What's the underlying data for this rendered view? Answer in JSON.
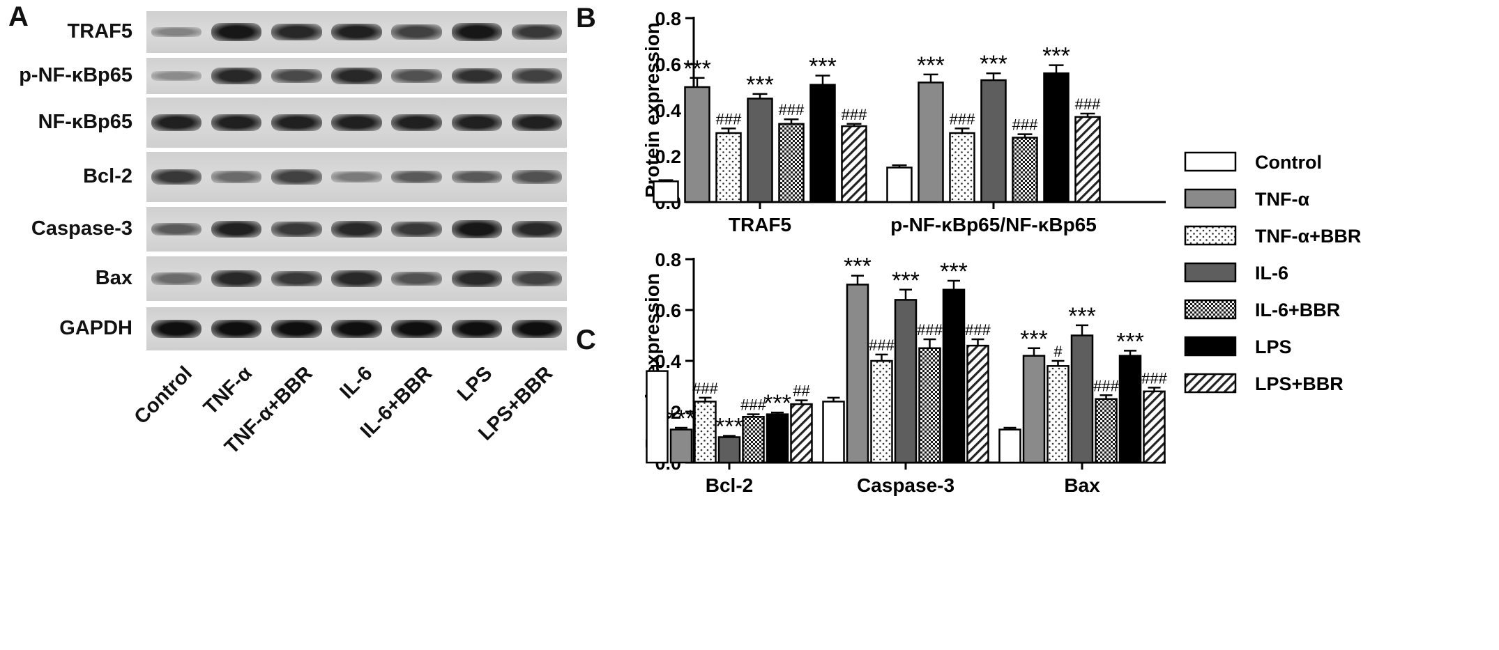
{
  "panels": {
    "a": "A",
    "b": "B",
    "c": "C"
  },
  "blot": {
    "rows": [
      {
        "label": "TRAF5",
        "intensity": [
          0.3,
          0.95,
          0.85,
          0.9,
          0.7,
          0.95,
          0.75
        ]
      },
      {
        "label": "p-NF-κBp65",
        "intensity": [
          0.25,
          0.85,
          0.65,
          0.85,
          0.6,
          0.8,
          0.7
        ]
      },
      {
        "label": "NF-κBp65",
        "intensity": [
          0.9,
          0.9,
          0.9,
          0.9,
          0.9,
          0.9,
          0.9
        ]
      },
      {
        "label": "Bcl-2",
        "intensity": [
          0.75,
          0.45,
          0.7,
          0.35,
          0.55,
          0.55,
          0.6
        ]
      },
      {
        "label": "Caspase-3",
        "intensity": [
          0.55,
          0.9,
          0.75,
          0.85,
          0.75,
          0.95,
          0.85
        ]
      },
      {
        "label": "Bax",
        "intensity": [
          0.45,
          0.85,
          0.75,
          0.85,
          0.6,
          0.85,
          0.7
        ]
      },
      {
        "label": "GAPDH",
        "intensity": [
          1.0,
          1.0,
          1.0,
          1.0,
          1.0,
          1.0,
          1.0
        ]
      }
    ],
    "lanes": [
      "Control",
      "TNF-α",
      "TNF-α+BBR",
      "IL-6",
      "IL-6+BBR",
      "LPS",
      "LPS+BBR"
    ]
  },
  "legend": [
    {
      "name": "Control",
      "fill": "white"
    },
    {
      "name": "TNF-α",
      "fill": "gray"
    },
    {
      "name": "TNF-α+BBR",
      "fill": "dots"
    },
    {
      "name": "IL-6",
      "fill": "darkgray"
    },
    {
      "name": "IL-6+BBR",
      "fill": "checker"
    },
    {
      "name": "LPS",
      "fill": "black"
    },
    {
      "name": "LPS+BBR",
      "fill": "hatch"
    }
  ],
  "chart_data": [
    {
      "type": "bar",
      "panel": "B",
      "ylabel": "Protein expression",
      "ylim": [
        0,
        0.8
      ],
      "yticks": [
        "0.0",
        "0.2",
        "0.4",
        "0.6",
        "0.8"
      ],
      "categories": [
        "TRAF5",
        "p-NF-κBp65/NF-κBp65"
      ],
      "series": [
        {
          "name": "Control",
          "values": [
            0.09,
            0.15
          ],
          "errors": [
            0.005,
            0.01
          ],
          "marks": [
            "",
            ""
          ]
        },
        {
          "name": "TNF-α",
          "values": [
            0.5,
            0.52
          ],
          "errors": [
            0.04,
            0.035
          ],
          "marks": [
            "***",
            "***"
          ]
        },
        {
          "name": "TNF-α+BBR",
          "values": [
            0.3,
            0.3
          ],
          "errors": [
            0.02,
            0.02
          ],
          "marks": [
            "###",
            "###"
          ]
        },
        {
          "name": "IL-6",
          "values": [
            0.45,
            0.53
          ],
          "errors": [
            0.02,
            0.03
          ],
          "marks": [
            "***",
            "***"
          ]
        },
        {
          "name": "IL-6+BBR",
          "values": [
            0.34,
            0.28
          ],
          "errors": [
            0.02,
            0.015
          ],
          "marks": [
            "###",
            "###"
          ]
        },
        {
          "name": "LPS",
          "values": [
            0.51,
            0.56
          ],
          "errors": [
            0.04,
            0.035
          ],
          "marks": [
            "***",
            "***"
          ]
        },
        {
          "name": "LPS+BBR",
          "values": [
            0.33,
            0.37
          ],
          "errors": [
            0.01,
            0.015
          ],
          "marks": [
            "###",
            "###"
          ]
        }
      ]
    },
    {
      "type": "bar",
      "panel": "C",
      "ylabel": "Protein expression",
      "ylim": [
        0,
        0.8
      ],
      "yticks": [
        "0.0",
        "0.2",
        "0.4",
        "0.6",
        "0.8"
      ],
      "categories": [
        "Bcl-2",
        "Caspase-3",
        "Bax"
      ],
      "series": [
        {
          "name": "Control",
          "values": [
            0.36,
            0.24,
            0.13
          ],
          "errors": [
            0.02,
            0.015,
            0.007
          ],
          "marks": [
            "",
            "",
            ""
          ]
        },
        {
          "name": "TNF-α",
          "values": [
            0.13,
            0.7,
            0.42
          ],
          "errors": [
            0.007,
            0.035,
            0.03
          ],
          "marks": [
            "***",
            "***",
            "***"
          ]
        },
        {
          "name": "TNF-α+BBR",
          "values": [
            0.24,
            0.4,
            0.38
          ],
          "errors": [
            0.015,
            0.025,
            0.02
          ],
          "marks": [
            "###",
            "###",
            "#"
          ]
        },
        {
          "name": "IL-6",
          "values": [
            0.1,
            0.64,
            0.5
          ],
          "errors": [
            0.005,
            0.04,
            0.04
          ],
          "marks": [
            "***",
            "***",
            "***"
          ]
        },
        {
          "name": "IL-6+BBR",
          "values": [
            0.18,
            0.45,
            0.25
          ],
          "errors": [
            0.01,
            0.035,
            0.015
          ],
          "marks": [
            "###",
            "###",
            "###"
          ]
        },
        {
          "name": "LPS",
          "values": [
            0.19,
            0.68,
            0.42
          ],
          "errors": [
            0.007,
            0.035,
            0.02
          ],
          "marks": [
            "***",
            "***",
            "***"
          ]
        },
        {
          "name": "LPS+BBR",
          "values": [
            0.23,
            0.46,
            0.28
          ],
          "errors": [
            0.015,
            0.025,
            0.015
          ],
          "marks": [
            "##",
            "###",
            "###"
          ]
        }
      ]
    }
  ]
}
